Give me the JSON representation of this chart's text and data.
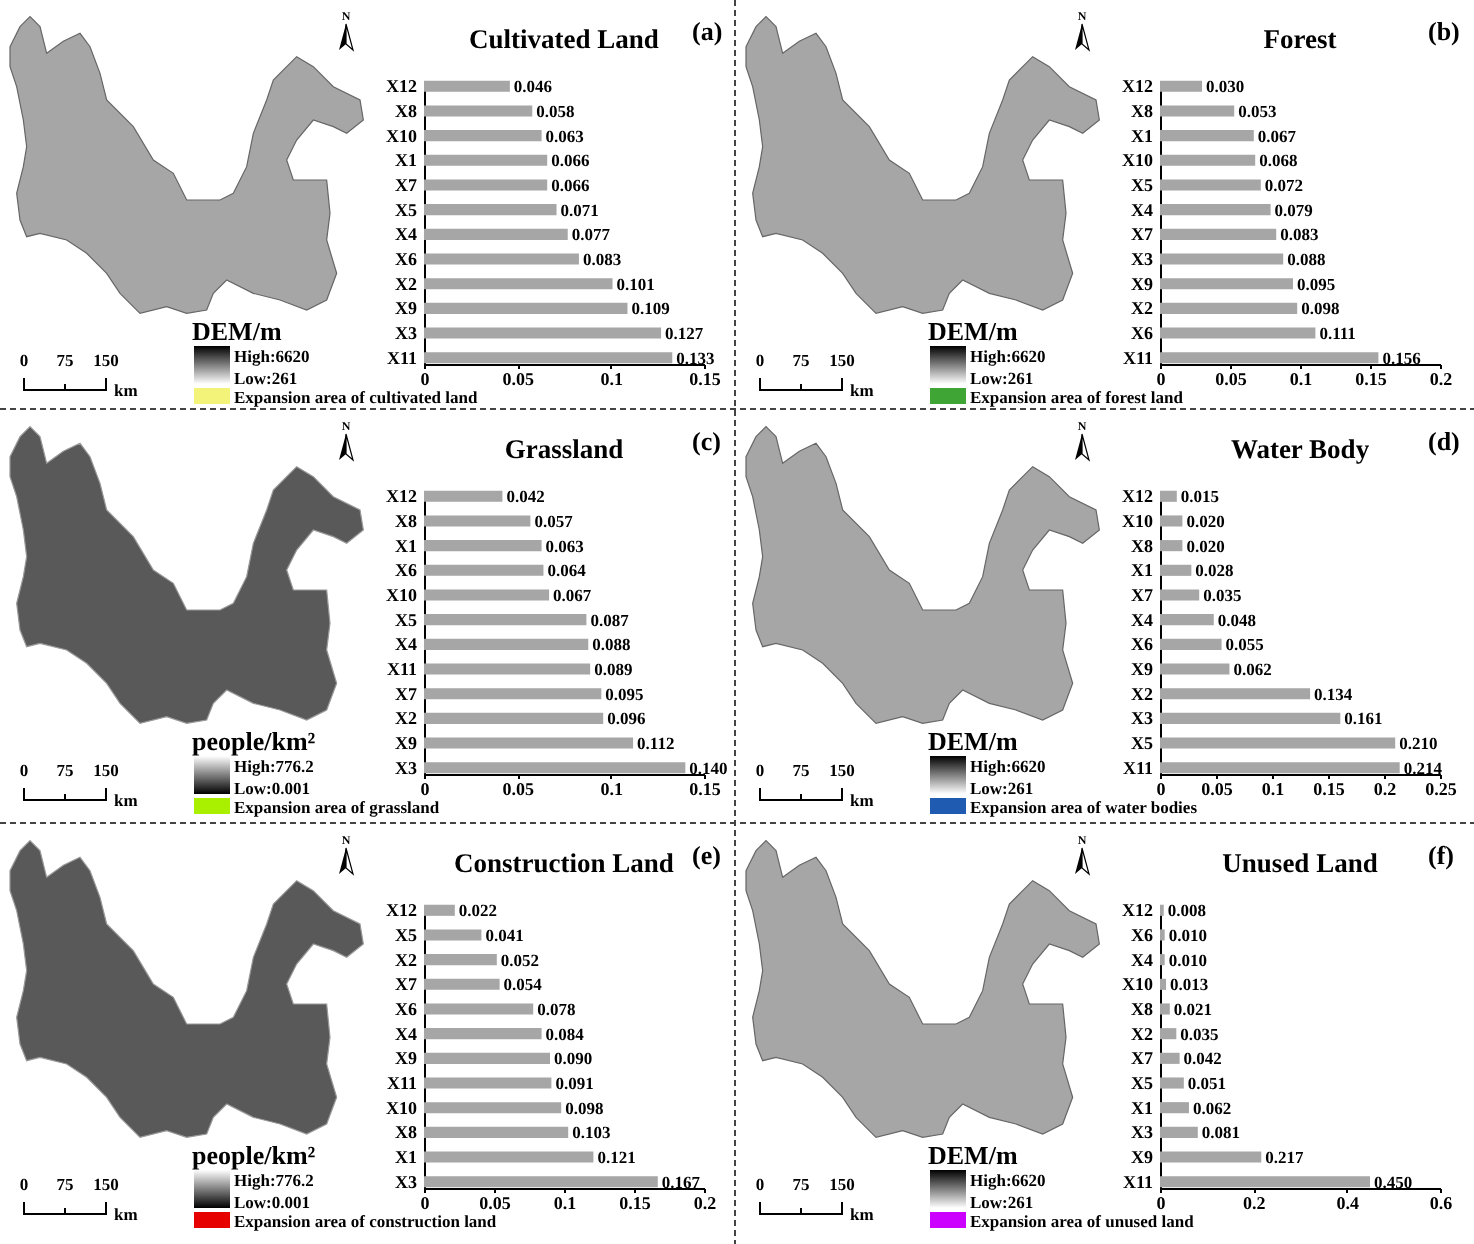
{
  "chart_data": [
    {
      "type": "other",
      "clabel": "DEM/m",
      "colors": [
        "#ffffff",
        "#000000"
      ],
      "series": [
        {
          "name": "Expansion area of cultivated land",
          "color": "#f3f37a"
        }
      ],
      "annotations": [
        "N",
        "0",
        "75",
        "150",
        "km",
        "High:6620",
        "Low:261"
      ]
    },
    {
      "type": "bar",
      "orientation": "horizontal",
      "title": "Cultivated Land",
      "annotations": [
        "(a)"
      ],
      "categories": [
        "X12",
        "X8",
        "X10",
        "X1",
        "X7",
        "X5",
        "X4",
        "X6",
        "X2",
        "X9",
        "X3",
        "X11"
      ],
      "values": [
        0.046,
        0.058,
        0.063,
        0.066,
        0.066,
        0.071,
        0.077,
        0.083,
        0.101,
        0.109,
        0.127,
        0.133
      ],
      "value_labels": [
        "0.046",
        "0.058",
        "0.063",
        "0.066",
        "0.066",
        "0.071",
        "0.077",
        "0.083",
        "0.101",
        "0.109",
        "0.127",
        "0.133"
      ],
      "color": "#a6a6a6",
      "xlim": [
        0,
        0.15
      ],
      "xticks": [
        0,
        0.05,
        0.1,
        0.15
      ]
    },
    {
      "type": "other",
      "clabel": "DEM/m",
      "colors": [
        "#ffffff",
        "#000000"
      ],
      "series": [
        {
          "name": "Expansion area of forest land",
          "color": "#3fa535"
        }
      ],
      "annotations": [
        "N",
        "0",
        "75",
        "150",
        "km",
        "High:6620",
        "Low:261"
      ]
    },
    {
      "type": "bar",
      "orientation": "horizontal",
      "title": "Forest",
      "annotations": [
        "(b)"
      ],
      "categories": [
        "X12",
        "X8",
        "X1",
        "X10",
        "X5",
        "X4",
        "X7",
        "X3",
        "X9",
        "X2",
        "X6",
        "X11"
      ],
      "values": [
        0.03,
        0.053,
        0.067,
        0.068,
        0.072,
        0.079,
        0.083,
        0.088,
        0.095,
        0.098,
        0.111,
        0.156
      ],
      "value_labels": [
        "0.030",
        "0.053",
        "0.067",
        "0.068",
        "0.072",
        "0.079",
        "0.083",
        "0.088",
        "0.095",
        "0.098",
        "0.111",
        "0.156"
      ],
      "color": "#a6a6a6",
      "xlim": [
        0,
        0.2
      ],
      "xticks": [
        0,
        0.05,
        0.1,
        0.15,
        0.2
      ]
    },
    {
      "type": "other",
      "clabel": "people/km²",
      "colors": [
        "#000000",
        "#ffffff"
      ],
      "series": [
        {
          "name": "Expansion area of grassland",
          "color": "#a8f000"
        }
      ],
      "annotations": [
        "N",
        "0",
        "75",
        "150",
        "km",
        "High:776.2",
        "Low:0.001"
      ]
    },
    {
      "type": "bar",
      "orientation": "horizontal",
      "title": "Grassland",
      "annotations": [
        "(c)"
      ],
      "categories": [
        "X12",
        "X8",
        "X1",
        "X6",
        "X10",
        "X5",
        "X4",
        "X11",
        "X7",
        "X2",
        "X9",
        "X3"
      ],
      "values": [
        0.042,
        0.057,
        0.063,
        0.064,
        0.067,
        0.087,
        0.088,
        0.089,
        0.095,
        0.096,
        0.112,
        0.14
      ],
      "value_labels": [
        "0.042",
        "0.057",
        "0.063",
        "0.064",
        "0.067",
        "0.087",
        "0.088",
        "0.089",
        "0.095",
        "0.096",
        "0.112",
        "0.140"
      ],
      "color": "#a6a6a6",
      "xlim": [
        0,
        0.15
      ],
      "xticks": [
        0,
        0.05,
        0.1,
        0.15
      ]
    },
    {
      "type": "other",
      "clabel": "DEM/m",
      "colors": [
        "#ffffff",
        "#000000"
      ],
      "series": [
        {
          "name": "Expansion area of water bodies",
          "color": "#1f5bb0"
        }
      ],
      "annotations": [
        "N",
        "0",
        "75",
        "150",
        "km",
        "High:6620",
        "Low:261"
      ]
    },
    {
      "type": "bar",
      "orientation": "horizontal",
      "title": "Water Body",
      "annotations": [
        "(d)"
      ],
      "categories": [
        "X12",
        "X10",
        "X8",
        "X1",
        "X7",
        "X4",
        "X6",
        "X9",
        "X2",
        "X3",
        "X5",
        "X11"
      ],
      "values": [
        0.015,
        0.02,
        0.02,
        0.028,
        0.035,
        0.048,
        0.055,
        0.062,
        0.134,
        0.161,
        0.21,
        0.214
      ],
      "value_labels": [
        "0.015",
        "0.020",
        "0.020",
        "0.028",
        "0.035",
        "0.048",
        "0.055",
        "0.062",
        "0.134",
        "0.161",
        "0.210",
        "0.214"
      ],
      "color": "#a6a6a6",
      "xlim": [
        0,
        0.25
      ],
      "xticks": [
        0,
        0.05,
        0.1,
        0.15,
        0.2,
        0.25
      ]
    },
    {
      "type": "other",
      "clabel": "people/km²",
      "colors": [
        "#000000",
        "#ffffff"
      ],
      "series": [
        {
          "name": "Expansion area of construction land",
          "color": "#e60000"
        }
      ],
      "annotations": [
        "N",
        "0",
        "75",
        "150",
        "km",
        "High:776.2",
        "Low:0.001"
      ]
    },
    {
      "type": "bar",
      "orientation": "horizontal",
      "title": "Construction Land",
      "annotations": [
        "(e)"
      ],
      "categories": [
        "X12",
        "X5",
        "X2",
        "X7",
        "X6",
        "X4",
        "X9",
        "X11",
        "X10",
        "X8",
        "X1",
        "X3"
      ],
      "values": [
        0.022,
        0.041,
        0.052,
        0.054,
        0.078,
        0.084,
        0.09,
        0.091,
        0.098,
        0.103,
        0.121,
        0.167
      ],
      "value_labels": [
        "0.022",
        "0.041",
        "0.052",
        "0.054",
        "0.078",
        "0.084",
        "0.090",
        "0.091",
        "0.098",
        "0.103",
        "0.121",
        "0.167"
      ],
      "color": "#a6a6a6",
      "xlim": [
        0,
        0.2
      ],
      "xticks": [
        0,
        0.05,
        0.1,
        0.15,
        0.2
      ]
    },
    {
      "type": "other",
      "clabel": "DEM/m",
      "colors": [
        "#ffffff",
        "#000000"
      ],
      "series": [
        {
          "name": "Expansion area of unused land",
          "color": "#cc00ff"
        }
      ],
      "annotations": [
        "N",
        "0",
        "75",
        "150",
        "km",
        "High:6620",
        "Low:261"
      ]
    },
    {
      "type": "bar",
      "orientation": "horizontal",
      "title": "Unused Land",
      "annotations": [
        "(f)"
      ],
      "categories": [
        "X12",
        "X6",
        "X4",
        "X10",
        "X8",
        "X2",
        "X7",
        "X5",
        "X1",
        "X3",
        "X9",
        "X11"
      ],
      "values": [
        0.008,
        0.01,
        0.01,
        0.013,
        0.021,
        0.035,
        0.042,
        0.051,
        0.062,
        0.081,
        0.217,
        0.45
      ],
      "value_labels": [
        "0.008",
        "0.010",
        "0.010",
        "0.013",
        "0.021",
        "0.035",
        "0.042",
        "0.051",
        "0.062",
        "0.081",
        "0.217",
        "0.450"
      ],
      "color": "#a6a6a6",
      "xlim": [
        0,
        0.6
      ],
      "xticks": [
        0,
        0.2,
        0.4,
        0.6
      ]
    }
  ]
}
